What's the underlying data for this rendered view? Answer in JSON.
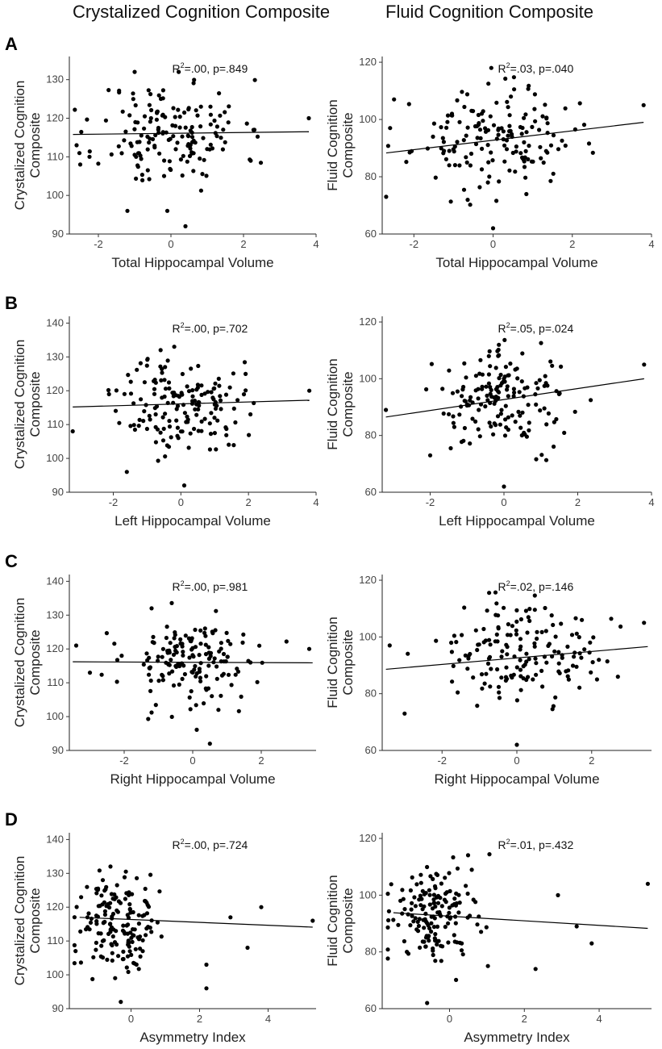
{
  "headers": {
    "left": "Crystalized Cognition Composite",
    "right": "Fluid Cognition Composite"
  },
  "row_labels": [
    "A",
    "B",
    "C",
    "D"
  ],
  "chart_data": [
    {
      "id": "A-crystal",
      "type": "scatter",
      "xlabel": "Total Hippocampal Volume",
      "ylabel": "Crystalized Cognition Composite",
      "ylabel_lines": [
        "Crystalized Cognition",
        "Composite"
      ],
      "stat_r2": ".00",
      "stat_p": ".849",
      "xlim": [
        -2.8,
        4.0
      ],
      "ylim": [
        90,
        136
      ],
      "xticks": [
        -2,
        0,
        2,
        4
      ],
      "yticks": [
        90,
        100,
        110,
        120,
        130
      ],
      "fit": {
        "x": [
          -2.7,
          3.8
        ],
        "y": [
          115.8,
          116.5
        ]
      },
      "points": {
        "n": 160,
        "mx": 0.0,
        "sx": 1.0,
        "my": 116,
        "sy": 7,
        "seed": 11,
        "extra": [
          [
            -1.0,
            132
          ],
          [
            -1.2,
            96
          ],
          [
            0.4,
            92
          ],
          [
            -0.1,
            96
          ],
          [
            3.8,
            120
          ],
          [
            -2.6,
            113
          ],
          [
            -2.5,
            108
          ],
          [
            2.3,
            117
          ]
        ]
      }
    },
    {
      "id": "A-fluid",
      "type": "scatter",
      "xlabel": "Total Hippocampal Volume",
      "ylabel": "Fluid Cognition Composite",
      "ylabel_lines": [
        "Fluid Cognition",
        "Composite"
      ],
      "stat_r2": ".03",
      "stat_p": ".040",
      "xlim": [
        -2.8,
        4.0
      ],
      "ylim": [
        60,
        122
      ],
      "xticks": [
        -2,
        0,
        2,
        4
      ],
      "yticks": [
        60,
        80,
        100,
        120
      ],
      "fit": {
        "x": [
          -2.7,
          3.8
        ],
        "y": [
          88.3,
          99.0
        ]
      },
      "points": {
        "n": 160,
        "mx": 0.0,
        "sx": 1.0,
        "my": 93,
        "sy": 8.5,
        "seed": 23,
        "extra": [
          [
            0.0,
            62
          ],
          [
            -2.7,
            73
          ],
          [
            3.8,
            105
          ],
          [
            -2.5,
            107
          ],
          [
            -2.6,
            97
          ]
        ]
      }
    },
    {
      "id": "B-crystal",
      "type": "scatter",
      "xlabel": "Left Hippocampal Volume",
      "ylabel": "Crystalized Cognition Composite",
      "ylabel_lines": [
        "Crystalized Cognition",
        "Composite"
      ],
      "stat_r2": ".00",
      "stat_p": ".702",
      "xlim": [
        -3.3,
        4.0
      ],
      "ylim": [
        90,
        142
      ],
      "xticks": [
        -2,
        0,
        2,
        4
      ],
      "yticks": [
        90,
        100,
        110,
        120,
        130,
        140
      ],
      "fit": {
        "x": [
          -3.2,
          3.8
        ],
        "y": [
          115.2,
          117.2
        ]
      },
      "points": {
        "n": 160,
        "mx": 0.0,
        "sx": 0.9,
        "my": 116,
        "sy": 7,
        "seed": 37,
        "extra": [
          [
            -3.2,
            108
          ],
          [
            -0.6,
            132
          ],
          [
            0.1,
            92
          ],
          [
            -1.6,
            96
          ],
          [
            3.8,
            120
          ]
        ]
      }
    },
    {
      "id": "B-fluid",
      "type": "scatter",
      "xlabel": "Left Hippocampal Volume",
      "ylabel": "Fluid Cognition Composite",
      "ylabel_lines": [
        "Fluid Cognition",
        "Composite"
      ],
      "stat_r2": ".05",
      "stat_p": ".024",
      "xlim": [
        -3.3,
        4.0
      ],
      "ylim": [
        60,
        122
      ],
      "xticks": [
        -2,
        0,
        2,
        4
      ],
      "yticks": [
        60,
        80,
        100,
        120
      ],
      "fit": {
        "x": [
          -3.2,
          3.8
        ],
        "y": [
          86.5,
          100.0
        ]
      },
      "points": {
        "n": 160,
        "mx": 0.0,
        "sx": 0.9,
        "my": 93,
        "sy": 8.5,
        "seed": 41,
        "extra": [
          [
            -3.2,
            89
          ],
          [
            0.0,
            62
          ],
          [
            -2.0,
            73
          ],
          [
            3.8,
            105
          ]
        ]
      }
    },
    {
      "id": "C-crystal",
      "type": "scatter",
      "xlabel": "Right Hippocampal Volume",
      "ylabel": "Crystalized Cognition Composite",
      "ylabel_lines": [
        "Crystalized Cognition",
        "Composite"
      ],
      "stat_r2": ".00",
      "stat_p": ".981",
      "xlim": [
        -3.6,
        3.6
      ],
      "ylim": [
        90,
        142
      ],
      "xticks": [
        -2,
        0,
        2
      ],
      "yticks": [
        90,
        100,
        110,
        120,
        130,
        140
      ],
      "fit": {
        "x": [
          -3.5,
          3.5
        ],
        "y": [
          116.2,
          115.9
        ]
      },
      "points": {
        "n": 160,
        "mx": 0.0,
        "sx": 1.0,
        "my": 116,
        "sy": 7,
        "seed": 53,
        "extra": [
          [
            -3.4,
            121
          ],
          [
            -1.2,
            132
          ],
          [
            0.5,
            92
          ],
          [
            3.4,
            120
          ],
          [
            -3.0,
            113
          ]
        ]
      }
    },
    {
      "id": "C-fluid",
      "type": "scatter",
      "xlabel": "Right Hippocampal Volume",
      "ylabel": "Fluid Cognition Composite",
      "ylabel_lines": [
        "Fluid Cognition",
        "Composite"
      ],
      "stat_r2": ".02",
      "stat_p": ".146",
      "xlim": [
        -3.6,
        3.6
      ],
      "ylim": [
        60,
        122
      ],
      "xticks": [
        -2,
        0,
        2
      ],
      "yticks": [
        60,
        80,
        100,
        120
      ],
      "fit": {
        "x": [
          -3.5,
          3.5
        ],
        "y": [
          88.6,
          96.6
        ]
      },
      "points": {
        "n": 160,
        "mx": 0.0,
        "sx": 1.0,
        "my": 93,
        "sy": 8.5,
        "seed": 67,
        "extra": [
          [
            0.0,
            62
          ],
          [
            -3.4,
            97
          ],
          [
            -3.0,
            73
          ],
          [
            3.4,
            105
          ],
          [
            2.7,
            86
          ]
        ]
      }
    },
    {
      "id": "D-crystal",
      "type": "scatter",
      "xlabel": "Asymmetry Index",
      "ylabel": "Crystalized Cognition Composite",
      "ylabel_lines": [
        "Crystalized Cognition",
        "Composite"
      ],
      "stat_r2": ".00",
      "stat_p": ".724",
      "xlim": [
        -1.8,
        5.4
      ],
      "ylim": [
        90,
        142
      ],
      "xticks": [
        0,
        2,
        4
      ],
      "yticks": [
        90,
        100,
        110,
        120,
        130,
        140
      ],
      "fit": {
        "x": [
          -1.5,
          5.3
        ],
        "y": [
          117.0,
          114.1
        ]
      },
      "points": {
        "n": 160,
        "mx": -0.4,
        "sx": 0.6,
        "my": 116,
        "sy": 7,
        "seed": 79,
        "extra": [
          [
            -0.6,
            132
          ],
          [
            -0.3,
            92
          ],
          [
            2.2,
            96
          ],
          [
            3.4,
            108
          ],
          [
            3.8,
            120
          ],
          [
            5.3,
            116
          ],
          [
            2.9,
            117
          ],
          [
            2.2,
            103
          ]
        ]
      }
    },
    {
      "id": "D-fluid",
      "type": "scatter",
      "xlabel": "Asymmetry Index",
      "ylabel": "Fluid Cognition Composite",
      "ylabel_lines": [
        "Fluid Cognition",
        "Composite"
      ],
      "stat_r2": ".01",
      "stat_p": ".432",
      "xlim": [
        -1.8,
        5.4
      ],
      "ylim": [
        60,
        122
      ],
      "xticks": [
        0,
        2,
        4
      ],
      "yticks": [
        60,
        80,
        100,
        120
      ],
      "fit": {
        "x": [
          -1.5,
          5.3
        ],
        "y": [
          93.8,
          88.3
        ]
      },
      "points": {
        "n": 160,
        "mx": -0.4,
        "sx": 0.6,
        "my": 93,
        "sy": 8.5,
        "seed": 83,
        "extra": [
          [
            -0.6,
            62
          ],
          [
            5.3,
            104
          ],
          [
            3.8,
            83
          ],
          [
            2.9,
            100
          ],
          [
            2.3,
            74
          ],
          [
            3.4,
            89
          ]
        ]
      }
    }
  ]
}
